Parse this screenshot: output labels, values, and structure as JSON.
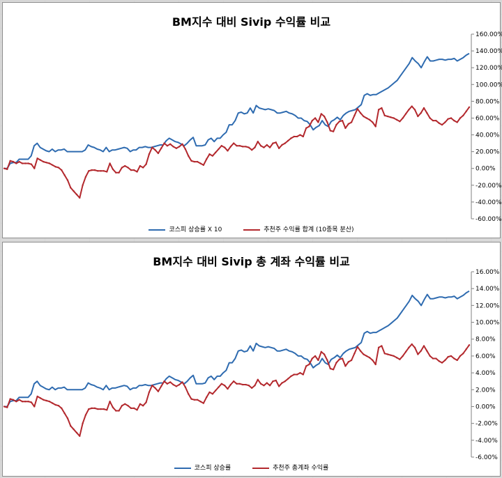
{
  "colors": {
    "kospi": "#2e6bb0",
    "fund": "#b3282d"
  },
  "chart_data": [
    {
      "type": "line",
      "title": "BM지수 대비 Sivip 수익률 비교",
      "ylim": [
        -0.6,
        1.6
      ],
      "y_ticks": [
        1.6,
        1.4,
        1.2,
        1.0,
        0.8,
        0.6,
        0.4,
        0.2,
        0.0,
        -0.2,
        -0.4,
        -0.6
      ],
      "y_tick_labels": [
        "160.00%",
        "140.00%",
        "120.00%",
        "100.00%",
        "80.00%",
        "60.00%",
        "40.00%",
        "20.00%",
        "0.00%",
        "-20.00%",
        "-40.00%",
        "-60.00%"
      ],
      "grid": false,
      "legend_position": "bottom",
      "series": [
        {
          "name": "코스피 상승률 X 10",
          "color": "#2e6bb0",
          "values": [
            0.0,
            0.0,
            0.06,
            0.07,
            0.07,
            0.11,
            0.11,
            0.11,
            0.11,
            0.15,
            0.27,
            0.3,
            0.25,
            0.23,
            0.21,
            0.2,
            0.23,
            0.2,
            0.22,
            0.22,
            0.23,
            0.2,
            0.2,
            0.2,
            0.2,
            0.2,
            0.2,
            0.22,
            0.28,
            0.26,
            0.25,
            0.23,
            0.22,
            0.2,
            0.25,
            0.2,
            0.22,
            0.22,
            0.23,
            0.24,
            0.25,
            0.24,
            0.2,
            0.22,
            0.22,
            0.25,
            0.25,
            0.26,
            0.25,
            0.25,
            0.26,
            0.27,
            0.28,
            0.28,
            0.33,
            0.36,
            0.34,
            0.32,
            0.31,
            0.29,
            0.27,
            0.3,
            0.34,
            0.37,
            0.27,
            0.27,
            0.27,
            0.28,
            0.34,
            0.36,
            0.32,
            0.36,
            0.36,
            0.4,
            0.43,
            0.52,
            0.52,
            0.57,
            0.66,
            0.67,
            0.65,
            0.66,
            0.72,
            0.66,
            0.75,
            0.72,
            0.71,
            0.7,
            0.71,
            0.7,
            0.69,
            0.66,
            0.66,
            0.67,
            0.68,
            0.66,
            0.65,
            0.63,
            0.6,
            0.6,
            0.57,
            0.56,
            0.52,
            0.46,
            0.49,
            0.51,
            0.57,
            0.52,
            0.5,
            0.56,
            0.58,
            0.61,
            0.58,
            0.63,
            0.66,
            0.68,
            0.69,
            0.7,
            0.73,
            0.76,
            0.87,
            0.89,
            0.87,
            0.88,
            0.88,
            0.9,
            0.92,
            0.94,
            0.96,
            0.99,
            1.02,
            1.05,
            1.1,
            1.15,
            1.2,
            1.25,
            1.32,
            1.28,
            1.25,
            1.2,
            1.27,
            1.33,
            1.28,
            1.28,
            1.29,
            1.3,
            1.3,
            1.29,
            1.3,
            1.3,
            1.31,
            1.28,
            1.3,
            1.32,
            1.35,
            1.37
          ]
        },
        {
          "name": "추천주 수익률 합계 (10종목 분산)",
          "color": "#b3282d",
          "values": [
            0.0,
            -0.01,
            0.09,
            0.08,
            0.06,
            0.08,
            0.06,
            0.06,
            0.06,
            0.05,
            0.0,
            0.12,
            0.1,
            0.08,
            0.07,
            0.06,
            0.04,
            0.02,
            0.01,
            -0.02,
            -0.08,
            -0.14,
            -0.23,
            -0.27,
            -0.31,
            -0.35,
            -0.2,
            -0.1,
            -0.03,
            -0.02,
            -0.02,
            -0.03,
            -0.03,
            -0.03,
            -0.04,
            0.06,
            -0.01,
            -0.05,
            -0.05,
            0.01,
            0.03,
            0.01,
            -0.02,
            -0.02,
            -0.04,
            0.03,
            0.01,
            0.05,
            0.17,
            0.25,
            0.22,
            0.18,
            0.24,
            0.3,
            0.27,
            0.29,
            0.26,
            0.24,
            0.26,
            0.29,
            0.23,
            0.15,
            0.09,
            0.08,
            0.08,
            0.06,
            0.04,
            0.11,
            0.17,
            0.15,
            0.19,
            0.23,
            0.27,
            0.25,
            0.21,
            0.26,
            0.3,
            0.27,
            0.27,
            0.26,
            0.26,
            0.25,
            0.22,
            0.25,
            0.32,
            0.27,
            0.25,
            0.28,
            0.25,
            0.3,
            0.31,
            0.24,
            0.28,
            0.3,
            0.33,
            0.36,
            0.38,
            0.38,
            0.4,
            0.38,
            0.48,
            0.5,
            0.57,
            0.6,
            0.55,
            0.65,
            0.62,
            0.55,
            0.45,
            0.44,
            0.52,
            0.56,
            0.57,
            0.48,
            0.53,
            0.55,
            0.63,
            0.71,
            0.66,
            0.62,
            0.6,
            0.58,
            0.55,
            0.5,
            0.7,
            0.72,
            0.63,
            0.62,
            0.61,
            0.6,
            0.58,
            0.56,
            0.6,
            0.65,
            0.7,
            0.74,
            0.7,
            0.62,
            0.66,
            0.72,
            0.66,
            0.6,
            0.57,
            0.57,
            0.54,
            0.52,
            0.55,
            0.59,
            0.6,
            0.57,
            0.55,
            0.6,
            0.63,
            0.68,
            0.73
          ]
        }
      ]
    },
    {
      "type": "line",
      "title": "BM지수 대비 Sivip 총 계좌 수익률 비교",
      "ylim": [
        -0.06,
        0.16
      ],
      "y_ticks": [
        0.16,
        0.14,
        0.12,
        0.1,
        0.08,
        0.06,
        0.04,
        0.02,
        0.0,
        -0.02,
        -0.04,
        -0.06
      ],
      "y_tick_labels": [
        "16.00%",
        "14.00%",
        "12.00%",
        "10.00%",
        "8.00%",
        "6.00%",
        "4.00%",
        "2.00%",
        "0.00%",
        "-2.00%",
        "-4.00%",
        "-6.00%"
      ],
      "grid": false,
      "legend_position": "bottom",
      "series": [
        {
          "name": "코스피 상승률",
          "color": "#2e6bb0",
          "values": [
            0.0,
            0.0,
            0.006,
            0.007,
            0.007,
            0.011,
            0.011,
            0.011,
            0.011,
            0.015,
            0.027,
            0.03,
            0.025,
            0.023,
            0.021,
            0.02,
            0.023,
            0.02,
            0.022,
            0.022,
            0.023,
            0.02,
            0.02,
            0.02,
            0.02,
            0.02,
            0.02,
            0.022,
            0.028,
            0.026,
            0.025,
            0.023,
            0.022,
            0.02,
            0.025,
            0.02,
            0.022,
            0.022,
            0.023,
            0.024,
            0.025,
            0.024,
            0.02,
            0.022,
            0.022,
            0.025,
            0.025,
            0.026,
            0.025,
            0.025,
            0.026,
            0.027,
            0.028,
            0.028,
            0.033,
            0.036,
            0.034,
            0.032,
            0.031,
            0.029,
            0.027,
            0.03,
            0.034,
            0.037,
            0.027,
            0.027,
            0.027,
            0.028,
            0.034,
            0.036,
            0.032,
            0.036,
            0.036,
            0.04,
            0.043,
            0.052,
            0.052,
            0.057,
            0.066,
            0.067,
            0.065,
            0.066,
            0.072,
            0.066,
            0.075,
            0.072,
            0.071,
            0.07,
            0.071,
            0.07,
            0.069,
            0.066,
            0.066,
            0.067,
            0.068,
            0.066,
            0.065,
            0.063,
            0.06,
            0.06,
            0.057,
            0.056,
            0.052,
            0.046,
            0.049,
            0.051,
            0.057,
            0.052,
            0.05,
            0.056,
            0.058,
            0.061,
            0.058,
            0.063,
            0.066,
            0.068,
            0.069,
            0.07,
            0.073,
            0.076,
            0.087,
            0.089,
            0.087,
            0.088,
            0.088,
            0.09,
            0.092,
            0.094,
            0.096,
            0.099,
            0.102,
            0.105,
            0.11,
            0.115,
            0.12,
            0.125,
            0.132,
            0.128,
            0.125,
            0.12,
            0.127,
            0.133,
            0.128,
            0.128,
            0.129,
            0.13,
            0.13,
            0.129,
            0.13,
            0.13,
            0.131,
            0.128,
            0.13,
            0.132,
            0.135,
            0.137
          ]
        },
        {
          "name": "추천주 총계좌 수익률",
          "color": "#b3282d",
          "values": [
            0.0,
            -0.001,
            0.009,
            0.008,
            0.006,
            0.008,
            0.006,
            0.006,
            0.006,
            0.005,
            0.0,
            0.012,
            0.01,
            0.008,
            0.007,
            0.006,
            0.004,
            0.002,
            0.001,
            -0.002,
            -0.008,
            -0.014,
            -0.023,
            -0.027,
            -0.031,
            -0.035,
            -0.02,
            -0.01,
            -0.003,
            -0.002,
            -0.002,
            -0.003,
            -0.003,
            -0.003,
            -0.004,
            0.006,
            -0.001,
            -0.005,
            -0.005,
            0.001,
            0.003,
            0.001,
            -0.002,
            -0.002,
            -0.004,
            0.003,
            0.001,
            0.005,
            0.017,
            0.025,
            0.022,
            0.018,
            0.024,
            0.03,
            0.027,
            0.029,
            0.026,
            0.024,
            0.026,
            0.029,
            0.023,
            0.015,
            0.009,
            0.008,
            0.008,
            0.006,
            0.004,
            0.011,
            0.017,
            0.015,
            0.019,
            0.023,
            0.027,
            0.025,
            0.021,
            0.026,
            0.03,
            0.027,
            0.027,
            0.026,
            0.026,
            0.025,
            0.022,
            0.025,
            0.032,
            0.027,
            0.025,
            0.028,
            0.025,
            0.03,
            0.031,
            0.024,
            0.028,
            0.03,
            0.033,
            0.036,
            0.038,
            0.038,
            0.04,
            0.038,
            0.048,
            0.05,
            0.057,
            0.06,
            0.055,
            0.065,
            0.062,
            0.055,
            0.045,
            0.044,
            0.052,
            0.056,
            0.057,
            0.048,
            0.053,
            0.055,
            0.063,
            0.071,
            0.066,
            0.062,
            0.06,
            0.058,
            0.055,
            0.05,
            0.07,
            0.072,
            0.063,
            0.062,
            0.061,
            0.06,
            0.058,
            0.056,
            0.06,
            0.065,
            0.07,
            0.074,
            0.07,
            0.062,
            0.066,
            0.072,
            0.066,
            0.06,
            0.057,
            0.057,
            0.054,
            0.052,
            0.055,
            0.059,
            0.06,
            0.057,
            0.055,
            0.06,
            0.063,
            0.068,
            0.073
          ]
        }
      ]
    }
  ]
}
